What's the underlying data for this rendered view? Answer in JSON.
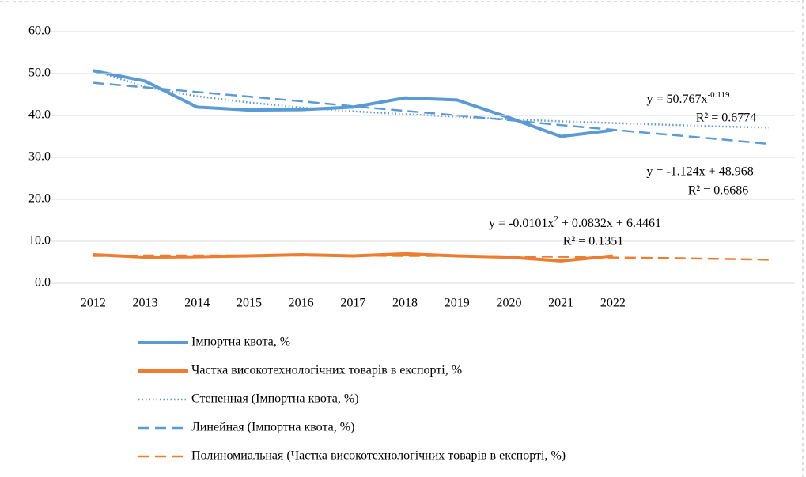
{
  "chart_data": {
    "type": "line",
    "categories": [
      "2012",
      "2013",
      "2014",
      "2015",
      "2016",
      "2017",
      "2018",
      "2019",
      "2020",
      "2021",
      "2022",
      null,
      null,
      null
    ],
    "ylim": [
      0,
      60
    ],
    "yticks": [
      {
        "value": 0,
        "label": "0.0"
      },
      {
        "value": 10,
        "label": "10.0"
      },
      {
        "value": 20,
        "label": "20.0"
      },
      {
        "value": 30,
        "label": "30.0"
      },
      {
        "value": 40,
        "label": "40.0"
      },
      {
        "value": 50,
        "label": "50.0"
      },
      {
        "value": 60,
        "label": "60.0"
      }
    ],
    "grid": true,
    "legend": "bottom",
    "series": [
      {
        "name": "Імпортна квота, %",
        "color": "#5b9bd5",
        "dash": "solid",
        "values": [
          50.7,
          48.2,
          42.0,
          41.3,
          41.4,
          42.0,
          44.2,
          43.7,
          39.5,
          35.0,
          36.5,
          null,
          null,
          null
        ]
      },
      {
        "name": "Частка високотехнологічних товарів в експорті, %",
        "color": "#ed7d31",
        "dash": "solid",
        "values": [
          6.8,
          6.2,
          6.3,
          6.5,
          6.8,
          6.5,
          7.0,
          6.5,
          6.2,
          5.3,
          6.5,
          null,
          null,
          null
        ]
      },
      {
        "name": "Степенная (Імпортна квота, %)",
        "color": "#5b9bd5",
        "dash": "dotted",
        "values": [
          50.8,
          46.8,
          44.6,
          43.1,
          41.9,
          41.0,
          40.3,
          39.7,
          39.1,
          38.6,
          38.2,
          37.8,
          37.4,
          37.1
        ]
      },
      {
        "name": "Линейная (Імпортна квота, %)",
        "color": "#5b9bd5",
        "dash": "dashed",
        "values": [
          47.8,
          46.7,
          45.6,
          44.5,
          43.4,
          42.2,
          41.1,
          40.0,
          38.9,
          37.7,
          36.6,
          35.5,
          34.4,
          33.2
        ]
      },
      {
        "name": "Полиномиальная (Частка високотехнологічних товарів в експорті, %)",
        "color": "#ed7d31",
        "dash": "dashed",
        "values": [
          6.5,
          6.6,
          6.6,
          6.6,
          6.6,
          6.6,
          6.5,
          6.5,
          6.4,
          6.3,
          6.1,
          6.0,
          5.8,
          5.6
        ]
      }
    ],
    "annotations": [
      {
        "text": "y = 50.767x",
        "sup": "-0.119",
        "r2": "R² = 0.6774"
      },
      {
        "text": "y = -1.124x + 48.968",
        "r2": "R² = 0.6686"
      },
      {
        "text": "y = -0.0101x",
        "sup": "2",
        "rest": " + 0.0832x + 6.4461",
        "r2": "R² = 0.1351"
      }
    ]
  }
}
